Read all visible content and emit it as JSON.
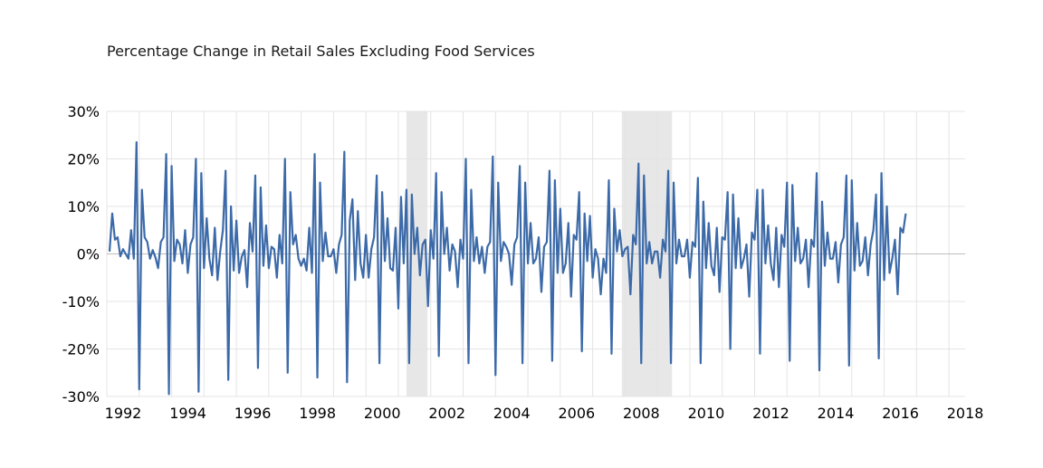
{
  "chart_data": {
    "type": "line",
    "title": "Percentage Change in Retail Sales Excluding Food Services",
    "xlabel": "",
    "ylabel": "",
    "x_range": [
      1992.0,
      2018.5
    ],
    "ylim": [
      -30,
      30
    ],
    "y_ticks": [
      30,
      20,
      10,
      0,
      -10,
      -20,
      -30
    ],
    "y_tick_labels": [
      "30%",
      "20%",
      "10%",
      "0%",
      "-10%",
      "-20%",
      "-30%"
    ],
    "x_ticks": [
      1992,
      1994,
      1996,
      1998,
      2000,
      2002,
      2004,
      2006,
      2008,
      2010,
      2012,
      2014,
      2016,
      2018
    ],
    "x_tick_labels": [
      "1992",
      "1994",
      "1996",
      "1998",
      "2000",
      "2002",
      "2004",
      "2006",
      "2008",
      "2010",
      "2012",
      "2014",
      "2016",
      "2018"
    ],
    "grid": "vertical at each year and horizontal at each y tick",
    "line_color": "#3c6aa8",
    "shade_color": "#e7e7e7",
    "recessions": [
      [
        2001.25,
        2001.9
      ],
      [
        2007.9,
        2009.45
      ]
    ],
    "series": [
      {
        "start_year": 1992,
        "start_month": 2,
        "frequency": "monthly",
        "values": [
          0.5,
          8.5,
          3,
          3.5,
          -0.5,
          1,
          0,
          -1,
          5,
          -1,
          23.5,
          -28.5,
          13.5,
          3.5,
          2.5,
          -1,
          0.8,
          -0.7,
          -3,
          2.5,
          3.5,
          21,
          -29.5,
          18.5,
          -1.5,
          3,
          2,
          -2,
          5,
          -4,
          2,
          3.5,
          20,
          -29,
          17,
          -3,
          7.5,
          -1,
          -4.5,
          5.5,
          -5.5,
          0.5,
          5,
          17.5,
          -26.5,
          10,
          -3.5,
          7,
          -4,
          -0.5,
          0.8,
          -7,
          6.5,
          0.5,
          16.5,
          -24,
          14,
          -2.5,
          6,
          -3,
          1.5,
          1,
          -5,
          4,
          -2,
          20,
          -25,
          13,
          2,
          4,
          -1,
          -2.5,
          -1,
          -3.5,
          5.5,
          -4,
          21,
          -26,
          15,
          -1.5,
          4.5,
          -0.5,
          -0.5,
          1,
          -4,
          2,
          4,
          21.5,
          -27,
          7,
          11.5,
          -5.5,
          9,
          -2,
          -5,
          4,
          -5,
          1,
          3.5,
          16.5,
          -23,
          13,
          -1.5,
          7.5,
          -3,
          -3.5,
          5.5,
          -11.5,
          12,
          -2,
          13.5,
          -23,
          12.5,
          0,
          5.5,
          -4.5,
          2,
          3,
          -11,
          5,
          -1,
          17,
          -21.5,
          13,
          0,
          5.5,
          -3.5,
          2,
          0.5,
          -7,
          3,
          -1,
          20,
          -23,
          13.5,
          -1.5,
          3.5,
          -2,
          1.5,
          -4,
          1.5,
          2.5,
          20.5,
          -25.5,
          15,
          -1.5,
          2.5,
          1.5,
          0,
          -6.5,
          2,
          3.5,
          18.5,
          -23,
          15,
          -2,
          6.5,
          -2,
          -1,
          3.5,
          -8,
          1.5,
          2.5,
          17.5,
          -22.5,
          15.5,
          -4,
          9.5,
          -4,
          -2,
          6.5,
          -9,
          4,
          3,
          13,
          -20.5,
          8.5,
          -1.5,
          8,
          -5,
          1,
          -1,
          -8.5,
          -1,
          -4,
          15.5,
          -21,
          9.5,
          0.5,
          5,
          -0.5,
          1,
          1.5,
          -8.5,
          4,
          2,
          19,
          -23,
          16.5,
          -2,
          2.5,
          -2,
          0.5,
          0.5,
          -5,
          3,
          0.5,
          17.5,
          -23,
          15,
          -2,
          3,
          -0.5,
          -0.5,
          3,
          -5,
          2.5,
          1.5,
          16,
          -23,
          11,
          -3,
          6.5,
          -2.5,
          -4.5,
          5.5,
          -8,
          3.5,
          3,
          13,
          -20,
          12.5,
          -3,
          7.5,
          -3,
          -1,
          2,
          -9,
          4.5,
          3,
          13.5,
          -21,
          13.5,
          -2,
          6,
          -2,
          -5.5,
          5.5,
          -7,
          4,
          1.5,
          15,
          -22.5,
          14.5,
          -1.5,
          5.5,
          -2,
          -1,
          3,
          -7,
          3,
          1.5,
          17,
          -24.5,
          11,
          -2.5,
          4.5,
          -1,
          -1,
          2.5,
          -6,
          2,
          3.5,
          16.5,
          -23.5,
          15.5,
          -3.5,
          6.5,
          -2.5,
          -1.5,
          3.5,
          -4.5,
          2,
          5,
          12.5,
          -22,
          17,
          -5.5,
          10,
          -4,
          -1,
          3,
          -8.5,
          5.5,
          4.5,
          8.5
        ]
      }
    ]
  }
}
